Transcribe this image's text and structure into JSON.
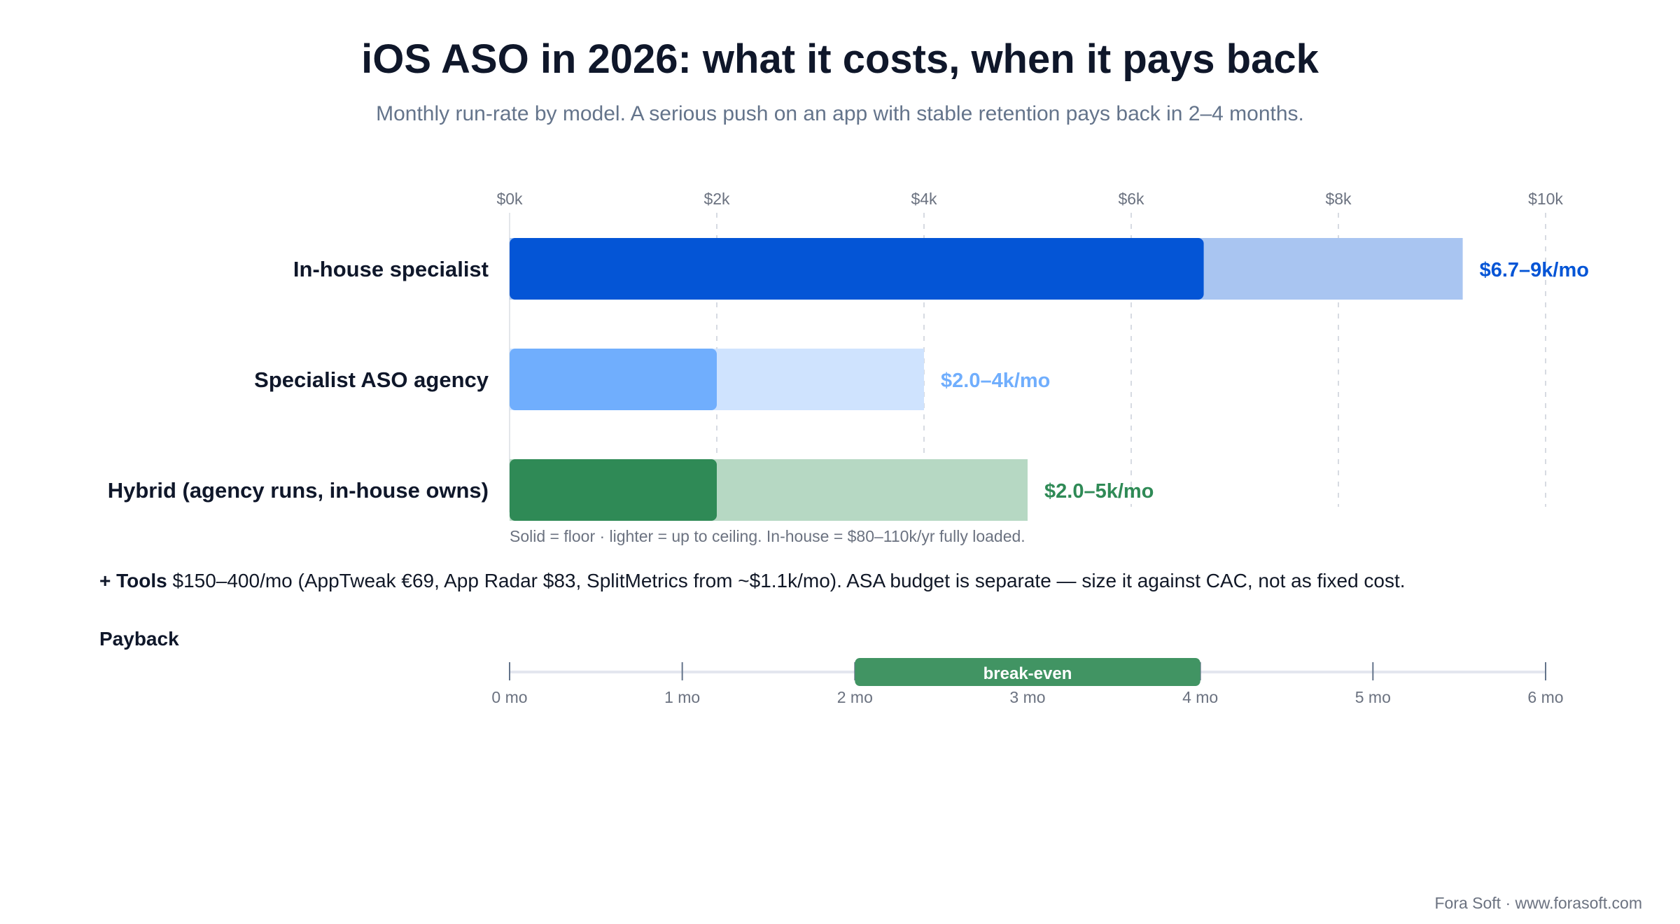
{
  "title": "iOS ASO in 2026: what it costs, when it pays back",
  "subtitle": "Monthly run-rate by model. A serious push on an app with stable retention pays back in 2–4 months.",
  "chart_data": [
    {
      "type": "bar",
      "orientation": "horizontal",
      "stacked_range": true,
      "x_unit": "$k per month",
      "xlim": [
        0,
        10
      ],
      "x_ticks": [
        0,
        2,
        4,
        6,
        8,
        10
      ],
      "x_tick_labels": [
        "$0k",
        "$2k",
        "$4k",
        "$6k",
        "$8k",
        "$10k"
      ],
      "grid": true,
      "categories": [
        "In-house specialist",
        "Specialist ASO agency",
        "Hybrid (agency runs, in-house owns)"
      ],
      "series": [
        {
          "name": "floor",
          "values": [
            6.7,
            2.0,
            2.0
          ]
        },
        {
          "name": "ceiling",
          "values": [
            9.2,
            4.0,
            5.0
          ]
        }
      ],
      "value_labels": [
        "$6.7–9k/mo",
        "$2.0–4k/mo",
        "$2.0–5k/mo"
      ],
      "colors": {
        "solid": [
          "#0455d6",
          "#70aefd",
          "#2f8a56"
        ],
        "light": [
          "#a9c5f1",
          "#cfe3fe",
          "#b6d8c3"
        ]
      },
      "note": "Solid = floor · lighter = up to ceiling. In-house = $80–110k/yr fully loaded."
    },
    {
      "type": "bar",
      "orientation": "horizontal",
      "title": "Payback",
      "xlim": [
        0,
        6
      ],
      "x_ticks": [
        0,
        1,
        2,
        3,
        4,
        5,
        6
      ],
      "x_tick_labels": [
        "0 mo",
        "1 mo",
        "2 mo",
        "3 mo",
        "4 mo",
        "5 mo",
        "6 mo"
      ],
      "range": [
        2,
        4
      ],
      "range_label": "break-even",
      "range_color": "#419463"
    }
  ],
  "tools_line": {
    "bold": "+ Tools",
    "text": " $150–400/mo (AppTweak €69, App Radar $83, SplitMetrics from ~$1.1k/mo). ASA budget is separate — size it against CAC, not as fixed cost."
  },
  "footer": "Fora Soft · www.forasoft.com"
}
